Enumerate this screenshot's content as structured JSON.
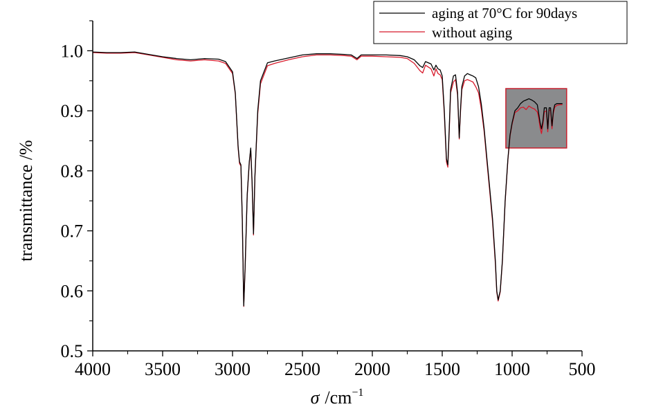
{
  "chart_data": {
    "type": "line",
    "xlabel_symbol": "σ",
    "xlabel_unit": "/cm",
    "xlabel_exp": "−1",
    "ylabel": "transmittance /%",
    "xlim": [
      4000,
      500
    ],
    "ylim": [
      0.5,
      1.05
    ],
    "x_ticks": [
      4000,
      3500,
      3000,
      2500,
      2000,
      1500,
      1000,
      500
    ],
    "x_tick_labels": [
      "4000",
      "3500",
      "3000",
      "2500",
      "2000",
      "1500",
      "1000",
      "500"
    ],
    "y_ticks": [
      0.5,
      0.6,
      0.7,
      0.8,
      0.9,
      1.0
    ],
    "y_tick_labels": [
      "0.5",
      "0.6",
      "0.7",
      "0.8",
      "0.9",
      "1.0"
    ],
    "grid": false,
    "legend_position": "top-right",
    "series": [
      {
        "name": "aging at 70°C for 90days",
        "color": "#000000",
        "points": [
          [
            4000,
            0.998
          ],
          [
            3900,
            0.997
          ],
          [
            3800,
            0.997
          ],
          [
            3700,
            0.998
          ],
          [
            3600,
            0.994
          ],
          [
            3500,
            0.99
          ],
          [
            3400,
            0.987
          ],
          [
            3300,
            0.985
          ],
          [
            3200,
            0.987
          ],
          [
            3100,
            0.986
          ],
          [
            3050,
            0.982
          ],
          [
            3000,
            0.965
          ],
          [
            2980,
            0.93
          ],
          [
            2960,
            0.84
          ],
          [
            2950,
            0.815
          ],
          [
            2940,
            0.81
          ],
          [
            2930,
            0.72
          ],
          [
            2920,
            0.575
          ],
          [
            2910,
            0.64
          ],
          [
            2895,
            0.76
          ],
          [
            2880,
            0.815
          ],
          [
            2870,
            0.838
          ],
          [
            2860,
            0.78
          ],
          [
            2850,
            0.695
          ],
          [
            2840,
            0.79
          ],
          [
            2820,
            0.9
          ],
          [
            2800,
            0.95
          ],
          [
            2750,
            0.98
          ],
          [
            2700,
            0.983
          ],
          [
            2600,
            0.988
          ],
          [
            2500,
            0.993
          ],
          [
            2400,
            0.995
          ],
          [
            2300,
            0.995
          ],
          [
            2200,
            0.994
          ],
          [
            2150,
            0.993
          ],
          [
            2110,
            0.987
          ],
          [
            2080,
            0.993
          ],
          [
            2000,
            0.993
          ],
          [
            1900,
            0.993
          ],
          [
            1800,
            0.992
          ],
          [
            1750,
            0.99
          ],
          [
            1700,
            0.985
          ],
          [
            1660,
            0.975
          ],
          [
            1640,
            0.972
          ],
          [
            1620,
            0.982
          ],
          [
            1580,
            0.978
          ],
          [
            1560,
            0.968
          ],
          [
            1545,
            0.976
          ],
          [
            1530,
            0.97
          ],
          [
            1515,
            0.968
          ],
          [
            1500,
            0.958
          ],
          [
            1485,
            0.9
          ],
          [
            1470,
            0.82
          ],
          [
            1460,
            0.81
          ],
          [
            1450,
            0.87
          ],
          [
            1440,
            0.935
          ],
          [
            1420,
            0.958
          ],
          [
            1405,
            0.96
          ],
          [
            1390,
            0.93
          ],
          [
            1378,
            0.855
          ],
          [
            1370,
            0.9
          ],
          [
            1360,
            0.94
          ],
          [
            1340,
            0.958
          ],
          [
            1320,
            0.962
          ],
          [
            1300,
            0.96
          ],
          [
            1280,
            0.958
          ],
          [
            1260,
            0.955
          ],
          [
            1240,
            0.94
          ],
          [
            1220,
            0.91
          ],
          [
            1200,
            0.87
          ],
          [
            1180,
            0.82
          ],
          [
            1160,
            0.77
          ],
          [
            1140,
            0.72
          ],
          [
            1120,
            0.65
          ],
          [
            1110,
            0.6
          ],
          [
            1100,
            0.585
          ],
          [
            1085,
            0.6
          ],
          [
            1070,
            0.65
          ],
          [
            1050,
            0.75
          ],
          [
            1030,
            0.82
          ],
          [
            1015,
            0.86
          ],
          [
            1000,
            0.88
          ],
          [
            980,
            0.9
          ],
          [
            960,
            0.905
          ],
          [
            940,
            0.912
          ],
          [
            920,
            0.916
          ],
          [
            900,
            0.918
          ],
          [
            880,
            0.92
          ],
          [
            860,
            0.918
          ],
          [
            840,
            0.915
          ],
          [
            820,
            0.91
          ],
          [
            810,
            0.895
          ],
          [
            800,
            0.88
          ],
          [
            790,
            0.87
          ],
          [
            780,
            0.882
          ],
          [
            770,
            0.905
          ],
          [
            755,
            0.905
          ],
          [
            745,
            0.87
          ],
          [
            735,
            0.905
          ],
          [
            725,
            0.905
          ],
          [
            715,
            0.875
          ],
          [
            705,
            0.9
          ],
          [
            695,
            0.91
          ],
          [
            680,
            0.912
          ],
          [
            660,
            0.912
          ],
          [
            640,
            0.912
          ]
        ]
      },
      {
        "name": "without aging",
        "color": "#d7192a",
        "points": [
          [
            4000,
            0.997
          ],
          [
            3900,
            0.996
          ],
          [
            3800,
            0.996
          ],
          [
            3700,
            0.997
          ],
          [
            3600,
            0.993
          ],
          [
            3500,
            0.989
          ],
          [
            3400,
            0.985
          ],
          [
            3300,
            0.983
          ],
          [
            3200,
            0.985
          ],
          [
            3100,
            0.983
          ],
          [
            3050,
            0.979
          ],
          [
            3000,
            0.962
          ],
          [
            2980,
            0.928
          ],
          [
            2960,
            0.838
          ],
          [
            2950,
            0.812
          ],
          [
            2940,
            0.808
          ],
          [
            2930,
            0.718
          ],
          [
            2920,
            0.574
          ],
          [
            2910,
            0.638
          ],
          [
            2895,
            0.758
          ],
          [
            2880,
            0.813
          ],
          [
            2870,
            0.836
          ],
          [
            2860,
            0.778
          ],
          [
            2850,
            0.693
          ],
          [
            2840,
            0.788
          ],
          [
            2820,
            0.895
          ],
          [
            2800,
            0.945
          ],
          [
            2750,
            0.975
          ],
          [
            2700,
            0.979
          ],
          [
            2600,
            0.985
          ],
          [
            2500,
            0.99
          ],
          [
            2400,
            0.993
          ],
          [
            2300,
            0.993
          ],
          [
            2200,
            0.992
          ],
          [
            2150,
            0.991
          ],
          [
            2110,
            0.985
          ],
          [
            2080,
            0.991
          ],
          [
            2000,
            0.991
          ],
          [
            1900,
            0.99
          ],
          [
            1800,
            0.989
          ],
          [
            1750,
            0.987
          ],
          [
            1700,
            0.979
          ],
          [
            1660,
            0.967
          ],
          [
            1640,
            0.963
          ],
          [
            1620,
            0.976
          ],
          [
            1580,
            0.97
          ],
          [
            1560,
            0.958
          ],
          [
            1545,
            0.97
          ],
          [
            1530,
            0.962
          ],
          [
            1515,
            0.96
          ],
          [
            1500,
            0.952
          ],
          [
            1485,
            0.895
          ],
          [
            1470,
            0.815
          ],
          [
            1460,
            0.806
          ],
          [
            1450,
            0.865
          ],
          [
            1440,
            0.93
          ],
          [
            1420,
            0.948
          ],
          [
            1405,
            0.952
          ],
          [
            1390,
            0.926
          ],
          [
            1378,
            0.853
          ],
          [
            1370,
            0.896
          ],
          [
            1360,
            0.935
          ],
          [
            1340,
            0.95
          ],
          [
            1320,
            0.952
          ],
          [
            1300,
            0.95
          ],
          [
            1280,
            0.948
          ],
          [
            1260,
            0.94
          ],
          [
            1240,
            0.93
          ],
          [
            1220,
            0.902
          ],
          [
            1200,
            0.865
          ],
          [
            1180,
            0.815
          ],
          [
            1160,
            0.765
          ],
          [
            1140,
            0.715
          ],
          [
            1120,
            0.645
          ],
          [
            1110,
            0.598
          ],
          [
            1100,
            0.583
          ],
          [
            1085,
            0.598
          ],
          [
            1070,
            0.648
          ],
          [
            1050,
            0.748
          ],
          [
            1030,
            0.818
          ],
          [
            1015,
            0.858
          ],
          [
            1000,
            0.878
          ],
          [
            980,
            0.897
          ],
          [
            960,
            0.9
          ],
          [
            940,
            0.905
          ],
          [
            920,
            0.906
          ],
          [
            900,
            0.902
          ],
          [
            880,
            0.908
          ],
          [
            860,
            0.905
          ],
          [
            840,
            0.903
          ],
          [
            820,
            0.898
          ],
          [
            810,
            0.888
          ],
          [
            800,
            0.872
          ],
          [
            790,
            0.862
          ],
          [
            780,
            0.876
          ],
          [
            770,
            0.898
          ],
          [
            755,
            0.9
          ],
          [
            745,
            0.865
          ],
          [
            735,
            0.902
          ],
          [
            725,
            0.9
          ],
          [
            715,
            0.87
          ],
          [
            705,
            0.896
          ],
          [
            695,
            0.906
          ],
          [
            680,
            0.909
          ],
          [
            660,
            0.91
          ],
          [
            640,
            0.91
          ]
        ]
      }
    ],
    "inset": {
      "fill_color": "#8a8b8d",
      "border_color": "#c8202e",
      "x_range": [
        1045,
        610
      ],
      "y_range": [
        0.838,
        0.937
      ]
    }
  }
}
